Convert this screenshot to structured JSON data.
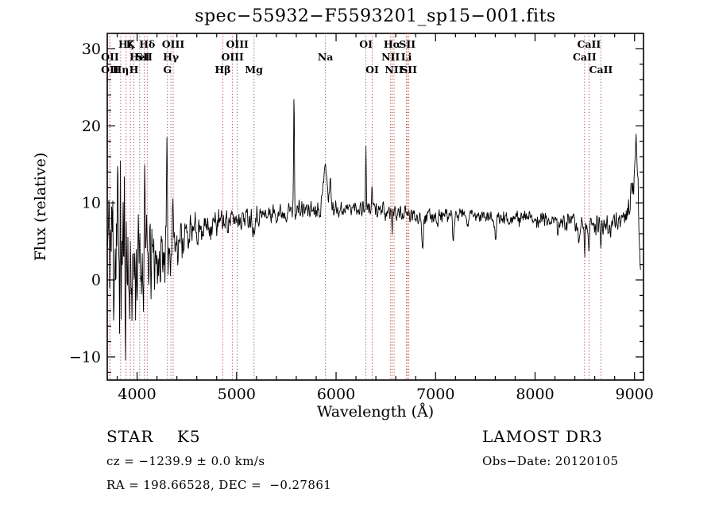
{
  "chart_data": {
    "type": "line",
    "title": "spec−55932−F5593201_sp15−001.fits",
    "xlabel": "Wavelength (Å)",
    "ylabel": "Flux (relative)",
    "x_ticks": [
      4000,
      5000,
      6000,
      7000,
      8000,
      9000
    ],
    "y_ticks": [
      -10,
      0,
      10,
      20,
      30
    ],
    "x_range": [
      3700,
      9090
    ],
    "y_range": [
      -13,
      32
    ],
    "x_minor_step": 200,
    "y_minor_step": 2,
    "legend": "none",
    "grid": false,
    "colors": {
      "spectrum": "#000000",
      "marker_line": "#a04848",
      "axis": "#000000",
      "background": "#ffffff"
    },
    "spectral_lines": [
      {
        "wavelength": 3727,
        "label": "OII",
        "row": 2
      },
      {
        "wavelength": 3727,
        "label": "OII",
        "row": 3
      },
      {
        "wavelength": 3835,
        "label": "Hη",
        "row": 3
      },
      {
        "wavelength": 3889,
        "label": "Hζ",
        "row": 1
      },
      {
        "wavelength": 3933,
        "label": "K",
        "row": 1
      },
      {
        "wavelength": 3968,
        "label": "H",
        "row": 3
      },
      {
        "wavelength": 4026,
        "label": "HeI",
        "row": 2
      },
      {
        "wavelength": 4072,
        "label": "SII",
        "row": 2
      },
      {
        "wavelength": 4102,
        "label": "Hδ",
        "row": 1
      },
      {
        "wavelength": 4305,
        "label": "G",
        "row": 3
      },
      {
        "wavelength": 4340,
        "label": "Hγ",
        "row": 2
      },
      {
        "wavelength": 4363,
        "label": "OIII",
        "row": 1
      },
      {
        "wavelength": 4861,
        "label": "Hβ",
        "row": 3
      },
      {
        "wavelength": 4959,
        "label": "OIII",
        "row": 2
      },
      {
        "wavelength": 5007,
        "label": "OIII",
        "row": 1
      },
      {
        "wavelength": 5175,
        "label": "Mg",
        "row": 3
      },
      {
        "wavelength": 5893,
        "label": "Na",
        "row": 2
      },
      {
        "wavelength": 6300,
        "label": "OI",
        "row": 1
      },
      {
        "wavelength": 6363,
        "label": "OI",
        "row": 3
      },
      {
        "wavelength": 6548,
        "label": "NII",
        "row": 2
      },
      {
        "wavelength": 6563,
        "label": "Hα",
        "row": 1
      },
      {
        "wavelength": 6583,
        "label": "NII",
        "row": 3
      },
      {
        "wavelength": 6707,
        "label": "Li",
        "row": 2
      },
      {
        "wavelength": 6716,
        "label": "SII",
        "row": 1
      },
      {
        "wavelength": 6731,
        "label": "SII",
        "row": 3
      },
      {
        "wavelength": 8498,
        "label": "CaII",
        "row": 2
      },
      {
        "wavelength": 8542,
        "label": "CaII",
        "row": 1
      },
      {
        "wavelength": 8662,
        "label": "CaII",
        "row": 3
      }
    ],
    "spectrum_model": {
      "x_start": 3700,
      "x_end": 9060,
      "step": 4,
      "seed": 11,
      "continuum": [
        [
          3700,
          4
        ],
        [
          3760,
          5
        ],
        [
          3830,
          4
        ],
        [
          3900,
          2.5
        ],
        [
          3960,
          1.5
        ],
        [
          4050,
          2
        ],
        [
          4150,
          2.5
        ],
        [
          4250,
          3.5
        ],
        [
          4350,
          4.5
        ],
        [
          4450,
          5.5
        ],
        [
          4550,
          6.2
        ],
        [
          4650,
          6.8
        ],
        [
          4750,
          7.2
        ],
        [
          4850,
          7.5
        ],
        [
          4950,
          7.8
        ],
        [
          5050,
          8.1
        ],
        [
          5150,
          8.2
        ],
        [
          5250,
          8.4
        ],
        [
          5350,
          8.6
        ],
        [
          5450,
          8.8
        ],
        [
          5550,
          9.0
        ],
        [
          5650,
          9.1
        ],
        [
          5750,
          9.2
        ],
        [
          5850,
          9.4
        ],
        [
          5950,
          9.4
        ],
        [
          6050,
          9.2
        ],
        [
          6150,
          9.3
        ],
        [
          6250,
          9.4
        ],
        [
          6350,
          9.3
        ],
        [
          6450,
          9.1
        ],
        [
          6550,
          8.9
        ],
        [
          6650,
          8.6
        ],
        [
          6750,
          8.4
        ],
        [
          6850,
          8.2
        ],
        [
          6950,
          8.3
        ],
        [
          7050,
          8.4
        ],
        [
          7150,
          8.2
        ],
        [
          7250,
          8.3
        ],
        [
          7350,
          8.2
        ],
        [
          7450,
          8.3
        ],
        [
          7550,
          8.1
        ],
        [
          7650,
          8.0
        ],
        [
          7750,
          8.1
        ],
        [
          7850,
          8.0
        ],
        [
          7950,
          8.0
        ],
        [
          8050,
          7.9
        ],
        [
          8150,
          7.8
        ],
        [
          8250,
          7.7
        ],
        [
          8350,
          7.5
        ],
        [
          8450,
          7.2
        ],
        [
          8550,
          7.0
        ],
        [
          8650,
          7.1
        ],
        [
          8750,
          7.4
        ],
        [
          8850,
          7.7
        ],
        [
          8920,
          8.5
        ],
        [
          8970,
          11
        ],
        [
          9000,
          14
        ],
        [
          9020,
          16.5
        ],
        [
          9035,
          12
        ],
        [
          9050,
          4
        ],
        [
          9060,
          0.8
        ]
      ],
      "noise_amplitude": [
        [
          3700,
          10
        ],
        [
          3780,
          12
        ],
        [
          3860,
          12
        ],
        [
          3940,
          9
        ],
        [
          4000,
          6.5
        ],
        [
          4100,
          5.5
        ],
        [
          4200,
          4.5
        ],
        [
          4300,
          3.5
        ],
        [
          4400,
          2.8
        ],
        [
          4500,
          2.2
        ],
        [
          4650,
          1.8
        ],
        [
          4800,
          1.6
        ],
        [
          5000,
          1.4
        ],
        [
          5300,
          1.2
        ],
        [
          5600,
          1.1
        ],
        [
          6000,
          1.0
        ],
        [
          6400,
          0.95
        ],
        [
          6800,
          0.9
        ],
        [
          7200,
          0.85
        ],
        [
          7600,
          0.85
        ],
        [
          8000,
          0.9
        ],
        [
          8400,
          1.0
        ],
        [
          8700,
          1.1
        ],
        [
          8950,
          1.6
        ],
        [
          9060,
          1.8
        ]
      ],
      "features": [
        {
          "x": 3934,
          "height": -5,
          "sigma": 5
        },
        {
          "x": 4078,
          "height": 14,
          "sigma": 4
        },
        {
          "x": 4227,
          "height": -5,
          "sigma": 4
        },
        {
          "x": 4300,
          "height": 11,
          "sigma": 4
        },
        {
          "x": 4360,
          "height": 7,
          "sigma": 4
        },
        {
          "x": 5170,
          "height": -2,
          "sigma": 7
        },
        {
          "x": 5577,
          "height": 15,
          "sigma": 4
        },
        {
          "x": 5890,
          "height": 6.2,
          "sigma": 16
        },
        {
          "x": 5940,
          "height": 3.5,
          "sigma": 8
        },
        {
          "x": 6300,
          "height": 7.5,
          "sigma": 4
        },
        {
          "x": 6363,
          "height": 2.5,
          "sigma": 4
        },
        {
          "x": 6495,
          "height": -2,
          "sigma": 5
        },
        {
          "x": 6563,
          "height": -2.2,
          "sigma": 5
        },
        {
          "x": 6870,
          "height": -3.8,
          "sigma": 7
        },
        {
          "x": 7020,
          "height": -1.5,
          "sigma": 5
        },
        {
          "x": 7180,
          "height": -2.6,
          "sigma": 7
        },
        {
          "x": 7320,
          "height": -1.5,
          "sigma": 5
        },
        {
          "x": 7605,
          "height": -2.8,
          "sigma": 8
        },
        {
          "x": 8230,
          "height": -2.2,
          "sigma": 6
        },
        {
          "x": 8440,
          "height": -3.2,
          "sigma": 5
        },
        {
          "x": 8498,
          "height": -4.2,
          "sigma": 4
        },
        {
          "x": 8542,
          "height": -4.2,
          "sigma": 4
        },
        {
          "x": 8662,
          "height": -3.8,
          "sigma": 4
        },
        {
          "x": 8760,
          "height": -2,
          "sigma": 5
        },
        {
          "x": 9015,
          "height": 2.5,
          "sigma": 6
        }
      ]
    }
  },
  "annotations": {
    "class_label": "STAR    K5",
    "survey": "LAMOST DR3",
    "cz": "cz = −1239.9 ± 0.0 km/s",
    "obs_date": "Obs−Date: 20120105",
    "ra_dec": "RA = 198.66528, DEC =  −0.27861"
  }
}
